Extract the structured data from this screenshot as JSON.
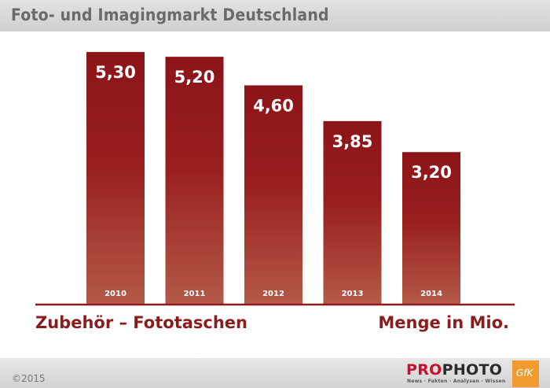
{
  "header": {
    "title": "Foto- und Imagingmarkt Deutschland"
  },
  "chart_data": {
    "type": "bar",
    "categories": [
      "2010",
      "2011",
      "2012",
      "2013",
      "2014"
    ],
    "values": [
      5.3,
      5.2,
      4.6,
      3.85,
      3.2
    ],
    "value_labels": [
      "5,30",
      "5,20",
      "4,60",
      "3,85",
      "3,20"
    ],
    "bar_color_top": "#8c1418",
    "bar_color_bottom": "#b35a48",
    "baseline_color": "#8a1c1e",
    "category_label": "Zubehör – Fototaschen",
    "unit_label": "Menge in Mio.",
    "ylim": [
      0,
      5.6
    ],
    "grid": false
  },
  "footer": {
    "copyright": "©2015",
    "brand_pro": "PRO",
    "brand_photo": "PHOTO",
    "brand_tagline": "News · Fakten · Analysen · Wissen",
    "partner": "GfK",
    "partner_color": "#f29a2e"
  }
}
